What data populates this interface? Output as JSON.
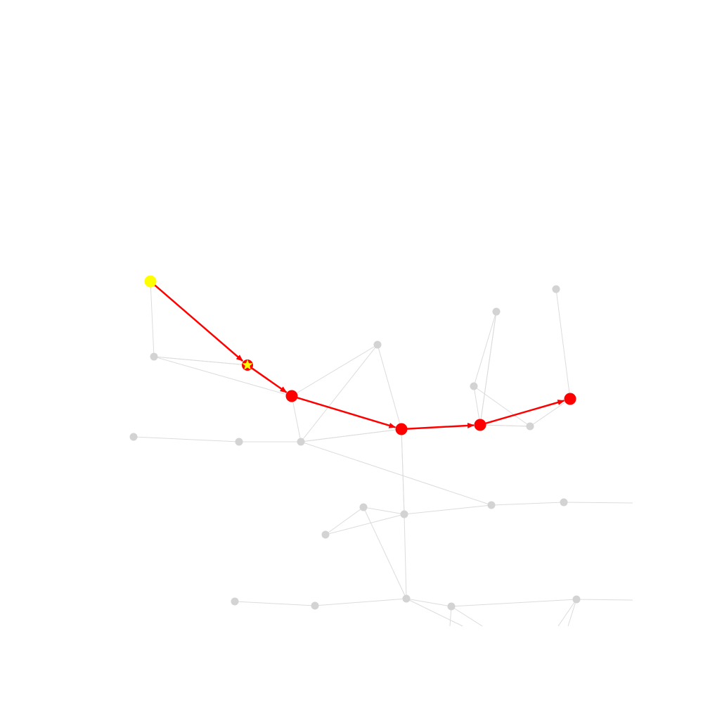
{
  "graph": {
    "colors": {
      "background": "#ffffff",
      "edge": "#dcdcdc",
      "node": "#d3d3d3",
      "path": "#ff0000",
      "start": "#ffff00",
      "star": "#ffff00"
    },
    "nodes": [
      {
        "id": "n-start",
        "role": "start"
      },
      {
        "id": "n-star",
        "role": "star"
      },
      {
        "id": "n-p1",
        "role": "path"
      },
      {
        "id": "n-p2",
        "role": "path"
      },
      {
        "id": "n-p3",
        "role": "path"
      },
      {
        "id": "n-end",
        "role": "path"
      },
      {
        "id": "n-a",
        "role": "plain"
      },
      {
        "id": "n-b",
        "role": "plain"
      },
      {
        "id": "n-c",
        "role": "plain"
      },
      {
        "id": "n-d",
        "role": "plain"
      },
      {
        "id": "n-e",
        "role": "plain"
      },
      {
        "id": "n-f",
        "role": "plain"
      },
      {
        "id": "n-g",
        "role": "plain"
      },
      {
        "id": "n-h",
        "role": "plain"
      },
      {
        "id": "n-i",
        "role": "plain"
      },
      {
        "id": "n-j",
        "role": "plain"
      },
      {
        "id": "n-k",
        "role": "plain"
      },
      {
        "id": "n-l",
        "role": "plain"
      },
      {
        "id": "n-m",
        "role": "plain"
      },
      {
        "id": "n-n",
        "role": "plain"
      },
      {
        "id": "n-o",
        "role": "plain"
      },
      {
        "id": "n-p",
        "role": "plain"
      },
      {
        "id": "n-q",
        "role": "plain"
      },
      {
        "id": "n-r",
        "role": "plain"
      },
      {
        "id": "n-s",
        "role": "plain"
      }
    ],
    "edges": [
      [
        "n-start",
        "n-a"
      ],
      [
        "n-a",
        "n-star"
      ],
      [
        "n-a",
        "n-p1"
      ],
      [
        "n-p1",
        "n-b"
      ],
      [
        "n-p1",
        "n-c"
      ],
      [
        "n-b",
        "n-p2"
      ],
      [
        "n-b",
        "n-c"
      ],
      [
        "n-c",
        "n-e"
      ],
      [
        "n-c",
        "n-h"
      ],
      [
        "n-e",
        "n-d"
      ],
      [
        "n-p2",
        "n-c"
      ],
      [
        "n-p2",
        "n-f"
      ],
      [
        "n-f",
        "n-h"
      ],
      [
        "n-f",
        "n-i"
      ],
      [
        "n-f",
        "n-j"
      ],
      [
        "n-i",
        "n-j"
      ],
      [
        "n-h",
        "n-q"
      ],
      [
        "n-p3",
        "n-k"
      ],
      [
        "n-p3",
        "n-l"
      ],
      [
        "n-l",
        "n-k"
      ],
      [
        "n-p3",
        "n-m"
      ],
      [
        "n-end",
        "n-n"
      ],
      [
        "n-end",
        "n-m"
      ],
      [
        "n-o",
        "n-p"
      ],
      [
        "n-p",
        "n-j"
      ],
      [
        "n-j",
        "n-r"
      ],
      [
        "n-r",
        "n-s"
      ]
    ],
    "path": [
      "n-start",
      "n-star",
      "n-p1",
      "n-p2",
      "n-p3",
      "n-end"
    ]
  }
}
